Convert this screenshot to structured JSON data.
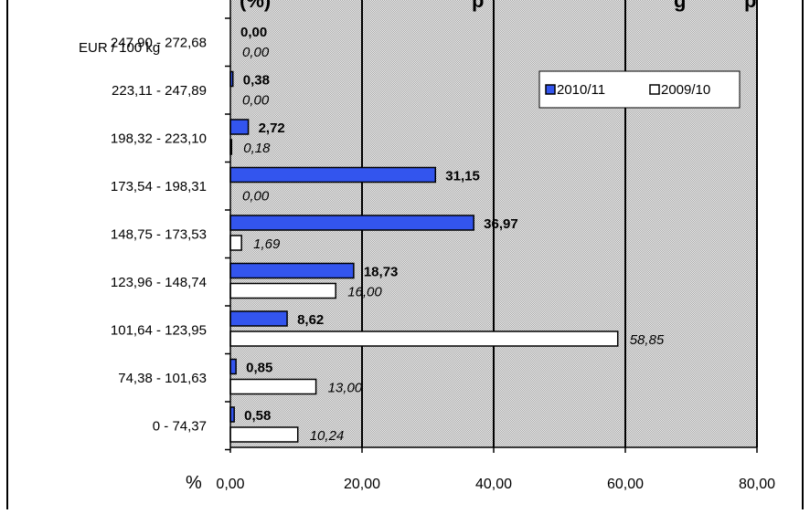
{
  "chart_data": {
    "type": "bar",
    "orientation": "horizontal",
    "title": "(%)",
    "title_visible_fragments": [
      "(%)",
      "p",
      "g",
      "p"
    ],
    "y_unit_label": "EUR / 100 kg",
    "x_unit_label": "%",
    "categories": [
      "247,90 - 272,68",
      "223,11 - 247,89",
      "198,32 - 223,10",
      "173,54 - 198,31",
      "148,75 - 173,53",
      "123,96 - 148,74",
      "101,64 - 123,95",
      "74,38 - 101,63",
      "0 - 74,37"
    ],
    "series": [
      {
        "name": "2010/11",
        "color": "#3355ee",
        "label_style": "bold",
        "values": [
          0.0,
          0.38,
          2.72,
          31.15,
          36.97,
          18.73,
          8.62,
          0.85,
          0.58
        ],
        "labels": [
          "0,00",
          "0,38",
          "2,72",
          "31,15",
          "36,97",
          "18,73",
          "8,62",
          "0,85",
          "0,58"
        ]
      },
      {
        "name": "2009/10",
        "color": "#ffffff",
        "label_style": "italic",
        "values": [
          0.0,
          0.0,
          0.18,
          0.0,
          1.69,
          16.0,
          58.85,
          13.0,
          10.24
        ],
        "labels": [
          "0,00",
          "0,00",
          "0,18",
          "0,00",
          "1,69",
          "16,00",
          "58,85",
          "13,00",
          "10,24"
        ]
      }
    ],
    "xlim": [
      0,
      80
    ],
    "x_ticks": [
      0,
      20,
      40,
      60,
      80
    ],
    "x_tick_labels": [
      "0,00",
      "20,00",
      "40,00",
      "60,00",
      "80,00"
    ],
    "grid": "vertical",
    "legend_position": "top-right",
    "plot_background": "#c0c0c0"
  }
}
